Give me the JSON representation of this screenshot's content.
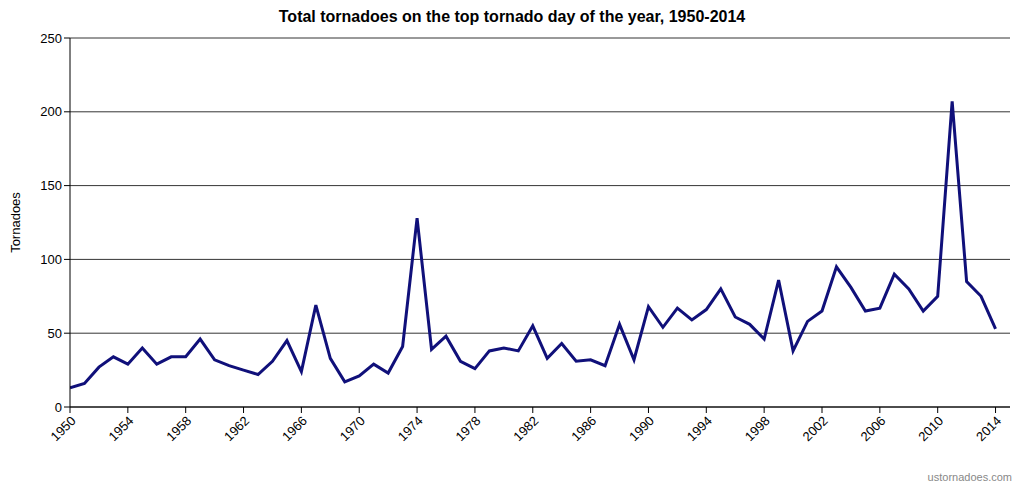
{
  "chart_data": {
    "type": "line",
    "title": "Total tornadoes on the top tornado day of the year, 1950-2014",
    "y_label": "Tornadoes",
    "annotations": [
      "ustornadoes.com"
    ],
    "x": [
      1950,
      1951,
      1952,
      1953,
      1954,
      1955,
      1956,
      1957,
      1958,
      1959,
      1960,
      1961,
      1962,
      1963,
      1964,
      1965,
      1966,
      1967,
      1968,
      1969,
      1970,
      1971,
      1972,
      1973,
      1974,
      1975,
      1976,
      1977,
      1978,
      1979,
      1980,
      1981,
      1982,
      1983,
      1984,
      1985,
      1986,
      1987,
      1988,
      1989,
      1990,
      1991,
      1992,
      1993,
      1994,
      1995,
      1996,
      1997,
      1998,
      1999,
      2000,
      2001,
      2002,
      2003,
      2004,
      2005,
      2006,
      2007,
      2008,
      2009,
      2010,
      2011,
      2012,
      2013,
      2014
    ],
    "values": [
      13,
      16,
      27,
      34,
      29,
      40,
      29,
      34,
      34,
      46,
      32,
      28,
      25,
      22,
      31,
      45,
      24,
      69,
      33,
      17,
      21,
      29,
      23,
      41,
      128,
      39,
      48,
      31,
      26,
      38,
      40,
      38,
      55,
      33,
      43,
      31,
      32,
      28,
      56,
      32,
      68,
      54,
      67,
      59,
      66,
      80,
      61,
      56,
      46,
      86,
      38,
      58,
      65,
      95,
      81,
      65,
      67,
      90,
      80,
      65,
      75,
      207,
      85,
      75,
      53
    ],
    "color": "#10107a",
    "xlim": [
      1950,
      2015
    ],
    "xticks": [
      1950,
      1954,
      1958,
      1962,
      1966,
      1970,
      1974,
      1978,
      1982,
      1986,
      1990,
      1994,
      1998,
      2002,
      2006,
      2010,
      2014
    ],
    "ylim": [
      0,
      250
    ],
    "yticks": [
      0,
      50,
      100,
      150,
      200,
      250
    ],
    "grid": true
  }
}
